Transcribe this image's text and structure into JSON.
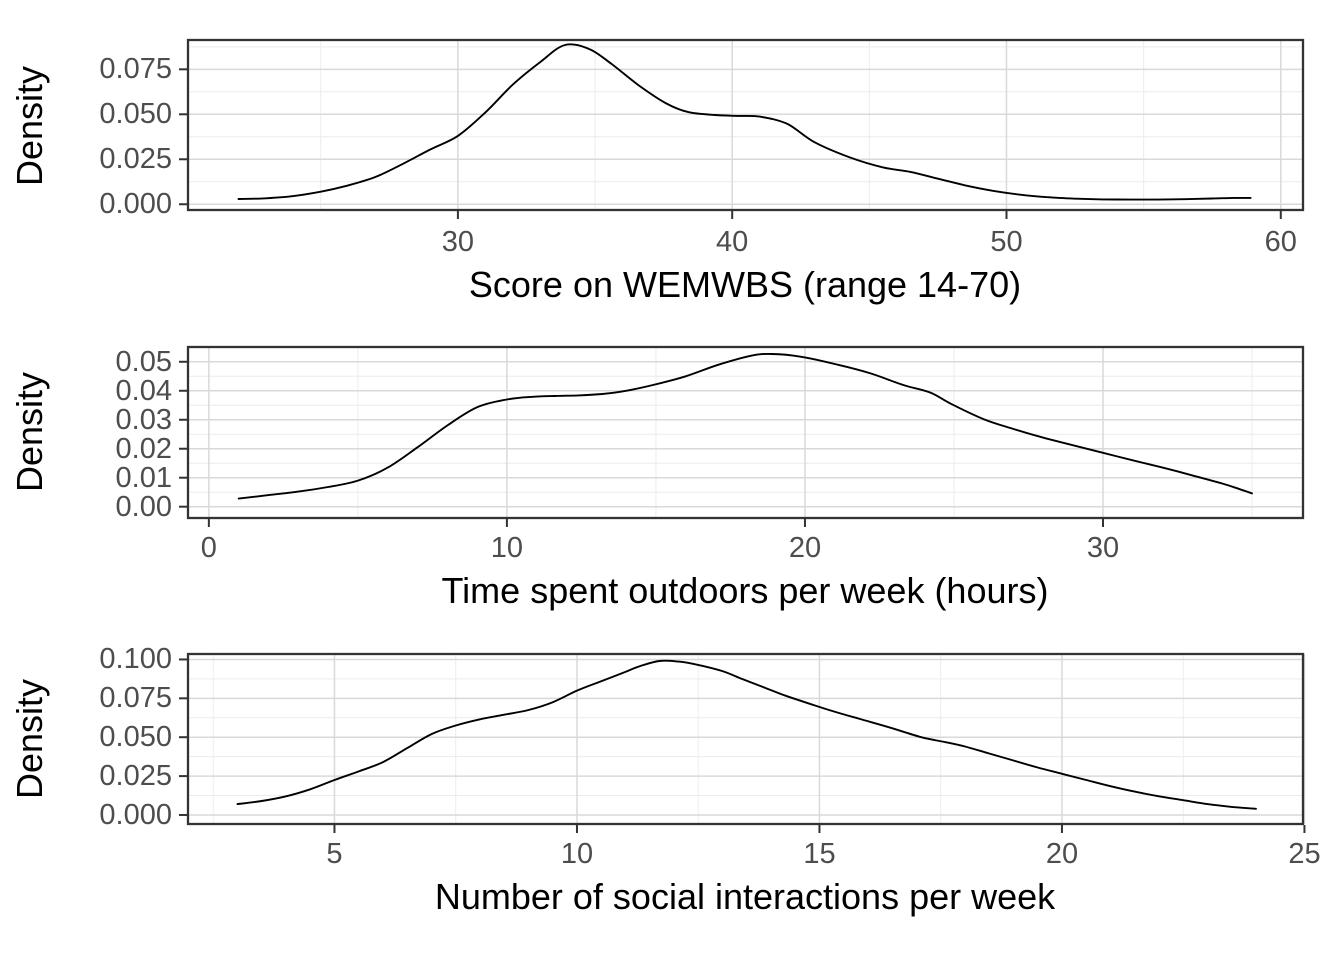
{
  "figure": {
    "background": "#ffffff",
    "description": "Three stacked density plots"
  },
  "style": {
    "curve_color": "#000000",
    "panel_border_color": "#333333",
    "grid_major_color": "#d9d9d9",
    "grid_minor_color": "#ececec",
    "tick_mark_color": "#333333",
    "tick_label_color": "#4d4d4d",
    "axis_title_color": "#000000"
  },
  "chart_data": [
    {
      "type": "line",
      "subtype": "density",
      "title": "",
      "xlabel": "Score on WEMWBS (range 14-70)",
      "ylabel": "Density",
      "legend_position": "none",
      "grid": true,
      "xlim": [
        20.16,
        60.81
      ],
      "ylim": [
        -0.0032,
        0.0913
      ],
      "x_ticks": [
        {
          "v": 30,
          "label": "30"
        },
        {
          "v": 40,
          "label": "40"
        },
        {
          "v": 50,
          "label": "50"
        },
        {
          "v": 60,
          "label": "60"
        }
      ],
      "y_ticks": [
        {
          "v": 0,
          "label": "0.000"
        },
        {
          "v": 0.025,
          "label": "0.025"
        },
        {
          "v": 0.05,
          "label": "0.050"
        },
        {
          "v": 0.075,
          "label": "0.075"
        }
      ],
      "x_minor": [
        25,
        35,
        45,
        55
      ],
      "y_minor": [
        0.0125,
        0.0375,
        0.0625,
        0.0875
      ],
      "points": [
        [
          22.0,
          0.0029
        ],
        [
          23,
          0.0033
        ],
        [
          24,
          0.0045
        ],
        [
          25,
          0.007
        ],
        [
          26,
          0.0105
        ],
        [
          27,
          0.0152
        ],
        [
          28,
          0.0225
        ],
        [
          29,
          0.0305
        ],
        [
          30,
          0.038
        ],
        [
          31,
          0.051
        ],
        [
          32,
          0.0665
        ],
        [
          33,
          0.079
        ],
        [
          33.9,
          0.0885
        ],
        [
          34.8,
          0.0862
        ],
        [
          35.6,
          0.078
        ],
        [
          36.6,
          0.066
        ],
        [
          37.6,
          0.056
        ],
        [
          38.4,
          0.0512
        ],
        [
          39.4,
          0.0496
        ],
        [
          40.2,
          0.0491
        ],
        [
          41,
          0.0487
        ],
        [
          42,
          0.0447
        ],
        [
          43,
          0.0345
        ],
        [
          44.3,
          0.026
        ],
        [
          45.5,
          0.0205
        ],
        [
          46.5,
          0.018
        ],
        [
          47.5,
          0.0142
        ],
        [
          48.5,
          0.0105
        ],
        [
          49.5,
          0.0075
        ],
        [
          50.5,
          0.0053
        ],
        [
          51.5,
          0.0039
        ],
        [
          52.5,
          0.0031
        ],
        [
          53.5,
          0.0027
        ],
        [
          54.5,
          0.0026
        ],
        [
          55.5,
          0.0026
        ],
        [
          56.5,
          0.0028
        ],
        [
          57.5,
          0.0032
        ],
        [
          58.3,
          0.0035
        ],
        [
          58.9,
          0.0035
        ]
      ]
    },
    {
      "type": "line",
      "subtype": "density",
      "title": "",
      "xlabel": "Time spent outdoors per week (hours)",
      "ylabel": "Density",
      "legend_position": "none",
      "grid": true,
      "xlim": [
        -0.7,
        36.71
      ],
      "ylim": [
        -0.0039,
        0.0551
      ],
      "x_ticks": [
        {
          "v": 0,
          "label": "0"
        },
        {
          "v": 10,
          "label": "10"
        },
        {
          "v": 20,
          "label": "20"
        },
        {
          "v": 30,
          "label": "30"
        }
      ],
      "y_ticks": [
        {
          "v": 0,
          "label": "0.00"
        },
        {
          "v": 0.01,
          "label": "0.01"
        },
        {
          "v": 0.02,
          "label": "0.02"
        },
        {
          "v": 0.03,
          "label": "0.03"
        },
        {
          "v": 0.04,
          "label": "0.04"
        },
        {
          "v": 0.05,
          "label": "0.05"
        }
      ],
      "x_minor": [
        5,
        15,
        25,
        35
      ],
      "y_minor": [
        0.005,
        0.015,
        0.025,
        0.035,
        0.045,
        0.055
      ],
      "points": [
        [
          1,
          0.0028
        ],
        [
          2,
          0.004
        ],
        [
          3,
          0.0052
        ],
        [
          4,
          0.0068
        ],
        [
          5,
          0.009
        ],
        [
          6,
          0.0135
        ],
        [
          7,
          0.0205
        ],
        [
          8,
          0.028
        ],
        [
          9,
          0.0343
        ],
        [
          10,
          0.037
        ],
        [
          10.8,
          0.0379
        ],
        [
          11.6,
          0.0382
        ],
        [
          12.4,
          0.0384
        ],
        [
          13.2,
          0.0389
        ],
        [
          14,
          0.04
        ],
        [
          14.9,
          0.042
        ],
        [
          16,
          0.045
        ],
        [
          17.1,
          0.049
        ],
        [
          18.2,
          0.0521
        ],
        [
          18.9,
          0.0527
        ],
        [
          19.9,
          0.0517
        ],
        [
          21.1,
          0.049
        ],
        [
          22.2,
          0.046
        ],
        [
          23.3,
          0.042
        ],
        [
          24.2,
          0.0394
        ],
        [
          24.9,
          0.0355
        ],
        [
          26,
          0.0302
        ],
        [
          27,
          0.0268
        ],
        [
          28,
          0.0238
        ],
        [
          29,
          0.0212
        ],
        [
          30,
          0.0186
        ],
        [
          31,
          0.016
        ],
        [
          32,
          0.0135
        ],
        [
          33,
          0.0108
        ],
        [
          34,
          0.008
        ],
        [
          34.6,
          0.006
        ],
        [
          35.0,
          0.0046
        ]
      ]
    },
    {
      "type": "line",
      "subtype": "density",
      "title": "",
      "xlabel": "Number of social interactions per week",
      "ylabel": "Density",
      "legend_position": "none",
      "grid": true,
      "xlim": [
        1.98,
        24.97
      ],
      "ylim": [
        -0.0058,
        0.1035
      ],
      "x_ticks": [
        {
          "v": 5,
          "label": "5"
        },
        {
          "v": 10,
          "label": "10"
        },
        {
          "v": 15,
          "label": "15"
        },
        {
          "v": 20,
          "label": "20"
        },
        {
          "v": 25,
          "label": "25"
        }
      ],
      "y_ticks": [
        {
          "v": 0,
          "label": "0.000"
        },
        {
          "v": 0.025,
          "label": "0.025"
        },
        {
          "v": 0.05,
          "label": "0.050"
        },
        {
          "v": 0.075,
          "label": "0.075"
        },
        {
          "v": 0.1,
          "label": "0.100"
        }
      ],
      "x_minor": [
        2.5,
        7.5,
        12.5,
        17.5,
        22.5
      ],
      "y_minor": [
        0.0125,
        0.0375,
        0.0625,
        0.0875
      ],
      "points": [
        [
          3,
          0.007
        ],
        [
          3.5,
          0.009
        ],
        [
          4,
          0.012
        ],
        [
          4.5,
          0.0165
        ],
        [
          5,
          0.0225
        ],
        [
          5.5,
          0.028
        ],
        [
          6,
          0.034
        ],
        [
          6.5,
          0.043
        ],
        [
          7,
          0.052
        ],
        [
          7.5,
          0.0575
        ],
        [
          8,
          0.0615
        ],
        [
          8.5,
          0.0645
        ],
        [
          9,
          0.0675
        ],
        [
          9.5,
          0.0725
        ],
        [
          10,
          0.08
        ],
        [
          10.5,
          0.086
        ],
        [
          11,
          0.092
        ],
        [
          11.3,
          0.0957
        ],
        [
          11.7,
          0.099
        ],
        [
          12.1,
          0.0986
        ],
        [
          12.5,
          0.0965
        ],
        [
          13,
          0.0925
        ],
        [
          13.4,
          0.0875
        ],
        [
          13.9,
          0.0815
        ],
        [
          14.3,
          0.0767
        ],
        [
          14.8,
          0.0715
        ],
        [
          15.3,
          0.0665
        ],
        [
          15.8,
          0.062
        ],
        [
          16.4,
          0.0567
        ],
        [
          17.1,
          0.05
        ],
        [
          17.6,
          0.0468
        ],
        [
          18,
          0.044
        ],
        [
          18.5,
          0.0395
        ],
        [
          19,
          0.035
        ],
        [
          19.5,
          0.0305
        ],
        [
          20,
          0.0265
        ],
        [
          20.5,
          0.0225
        ],
        [
          21,
          0.0185
        ],
        [
          21.5,
          0.015
        ],
        [
          22,
          0.012
        ],
        [
          22.5,
          0.0095
        ],
        [
          23,
          0.007
        ],
        [
          23.5,
          0.0052
        ],
        [
          24,
          0.004
        ]
      ]
    }
  ]
}
